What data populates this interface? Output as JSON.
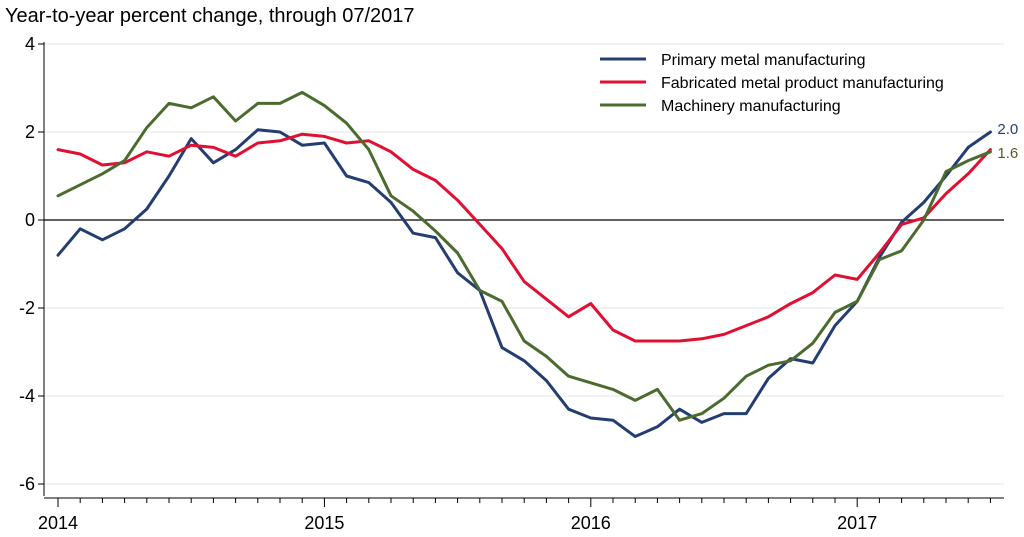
{
  "chart_data": {
    "type": "line",
    "title": "Year-to-year percent change, through 07/2017",
    "xlabel": "",
    "ylabel": "",
    "ylim": [
      -6,
      4
    ],
    "yticks": [
      4,
      2,
      0,
      -2,
      -4,
      -6
    ],
    "ytick_labels": [
      "4",
      "2",
      "0",
      "-2",
      "-4",
      "-6"
    ],
    "xticks": [
      {
        "label": "2014",
        "index": 0
      },
      {
        "label": "2015",
        "index": 12
      },
      {
        "label": "2016",
        "index": 24
      },
      {
        "label": "2017",
        "index": 36
      }
    ],
    "x_start": "2014-01",
    "x_end": "2017-07",
    "grid": true,
    "zero_line": true,
    "legend_position": "top-right",
    "series": [
      {
        "name": "Primary metal manufacturing",
        "color": "#243e72",
        "end_label": "2.0",
        "values": [
          -0.8,
          -0.2,
          -0.45,
          -0.2,
          0.25,
          1.0,
          1.85,
          1.3,
          1.6,
          2.05,
          2.0,
          1.7,
          1.75,
          1.0,
          0.85,
          0.4,
          -0.3,
          -0.4,
          -1.2,
          -1.6,
          -2.9,
          -3.2,
          -3.65,
          -4.3,
          -4.5,
          -4.55,
          -4.92,
          -4.7,
          -4.3,
          -4.6,
          -4.4,
          -4.4,
          -3.6,
          -3.15,
          -3.25,
          -2.4,
          -1.85,
          -0.85,
          -0.05,
          0.4,
          1.0,
          1.65,
          2.0
        ]
      },
      {
        "name": "Fabricated metal product manufacturing",
        "color": "#e11032",
        "end_label": "",
        "values": [
          1.6,
          1.5,
          1.25,
          1.3,
          1.55,
          1.45,
          1.7,
          1.65,
          1.45,
          1.75,
          1.8,
          1.95,
          1.9,
          1.75,
          1.8,
          1.55,
          1.15,
          0.9,
          0.45,
          -0.1,
          -0.65,
          -1.4,
          -1.8,
          -2.2,
          -1.9,
          -2.5,
          -2.75,
          -2.75,
          -2.75,
          -2.7,
          -2.6,
          -2.4,
          -2.2,
          -1.9,
          -1.65,
          -1.25,
          -1.35,
          -0.75,
          -0.1,
          0.05,
          0.6,
          1.05,
          1.6
        ]
      },
      {
        "name": "Machinery manufacturing",
        "color": "#4b6b2f",
        "end_label": "1.6",
        "values": [
          0.55,
          0.8,
          1.05,
          1.35,
          2.1,
          2.65,
          2.55,
          2.8,
          2.25,
          2.65,
          2.65,
          2.9,
          2.6,
          2.2,
          1.6,
          0.55,
          0.2,
          -0.25,
          -0.75,
          -1.6,
          -1.85,
          -2.75,
          -3.1,
          -3.55,
          -3.7,
          -3.85,
          -4.1,
          -3.85,
          -4.55,
          -4.4,
          -4.05,
          -3.55,
          -3.3,
          -3.2,
          -2.8,
          -2.1,
          -1.85,
          -0.9,
          -0.7,
          0.0,
          1.1,
          1.35,
          1.55
        ]
      }
    ]
  }
}
